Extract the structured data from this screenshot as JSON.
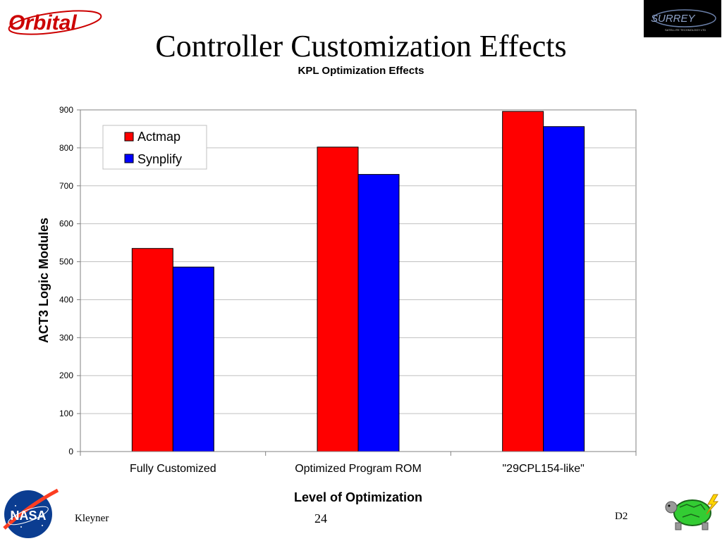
{
  "slide": {
    "title": "Controller Customization Effects",
    "footer_left": "Kleyner",
    "page_number": "24",
    "footer_right": "D2"
  },
  "logos": {
    "orbital": "Orbital",
    "surrey": "SURREY",
    "surrey_sub": "SATELLITE TECHNOLOGY LTD",
    "nasa": "NASA"
  },
  "colors": {
    "actmap": "#ff0000",
    "synplify": "#0000ff",
    "gridline": "#c0c0c0"
  },
  "chart_data": {
    "type": "bar",
    "title": "KPL Optimization Effects",
    "xlabel": "Level of Optimization",
    "ylabel": "ACT3 Logic Modules",
    "categories": [
      "Fully Customized",
      "Optimized Program ROM",
      "\"29CPL154-like\""
    ],
    "series": [
      {
        "name": "Actmap",
        "color": "#ff0000",
        "values": [
          535,
          802,
          896
        ]
      },
      {
        "name": "Synplify",
        "color": "#0000ff",
        "values": [
          486,
          730,
          856
        ]
      }
    ],
    "ylim": [
      0,
      900
    ],
    "yticks": [
      0,
      100,
      200,
      300,
      400,
      500,
      600,
      700,
      800,
      900
    ],
    "grid": true,
    "legend_position": "top-left"
  }
}
